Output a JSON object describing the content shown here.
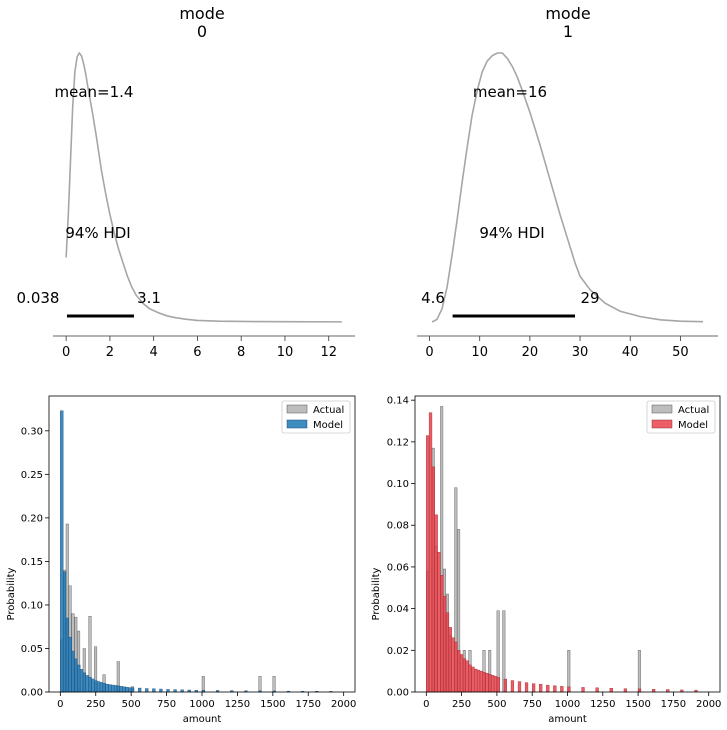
{
  "chart_data": [
    {
      "type": "area",
      "title": "mode\n0",
      "title_lines": [
        "mode",
        "0"
      ],
      "xlim": [
        -0.6,
        13.2
      ],
      "xticks": [
        0,
        2,
        4,
        6,
        8,
        10,
        12
      ],
      "xticklabels": [
        "0",
        "2",
        "4",
        "6",
        "8",
        "10",
        "12"
      ],
      "density": {
        "x": [
          0.0,
          0.1,
          0.2,
          0.3,
          0.4,
          0.5,
          0.6,
          0.7,
          0.8,
          0.9,
          1.0,
          1.2,
          1.4,
          1.6,
          1.8,
          2.0,
          2.2,
          2.4,
          2.6,
          2.8,
          3.0,
          3.2,
          3.5,
          3.8,
          4.2,
          4.6,
          5.0,
          5.5,
          6.0,
          7.0,
          8.0,
          10.0,
          12.6
        ],
        "y": [
          0.24,
          0.4,
          0.6,
          0.8,
          0.93,
          0.985,
          1.0,
          0.99,
          0.96,
          0.92,
          0.87,
          0.78,
          0.68,
          0.57,
          0.48,
          0.4,
          0.33,
          0.27,
          0.22,
          0.17,
          0.13,
          0.1,
          0.07,
          0.05,
          0.035,
          0.023,
          0.016,
          0.01,
          0.006,
          0.003,
          0.002,
          0.001,
          0.0005
        ]
      },
      "mean_label": "mean=1.4",
      "hdi_label": "94% HDI",
      "hdi": [
        0.038,
        3.1
      ],
      "hdi_low_label": "0.038",
      "hdi_high_label": "3.1",
      "line_color": "#a6a6a6"
    },
    {
      "type": "area",
      "title": "mode\n1",
      "title_lines": [
        "mode",
        "1"
      ],
      "xlim": [
        -2.5,
        57.5
      ],
      "xticks": [
        0,
        10,
        20,
        30,
        40,
        50
      ],
      "xticklabels": [
        "0",
        "10",
        "20",
        "30",
        "40",
        "50"
      ],
      "density": {
        "x": [
          0.5,
          1.5,
          2.5,
          3.5,
          4.5,
          5.5,
          6.5,
          7.5,
          8.5,
          9.5,
          10.5,
          11.5,
          12.5,
          13.5,
          14.5,
          15.5,
          16.5,
          17.5,
          18.5,
          20,
          22,
          24,
          26,
          28,
          29,
          30,
          32,
          35,
          38,
          42,
          46,
          50,
          54.5
        ],
        "y": [
          0.0,
          0.01,
          0.05,
          0.13,
          0.25,
          0.38,
          0.52,
          0.65,
          0.77,
          0.86,
          0.93,
          0.97,
          0.99,
          1.0,
          1.0,
          0.98,
          0.95,
          0.91,
          0.86,
          0.78,
          0.66,
          0.53,
          0.4,
          0.28,
          0.22,
          0.17,
          0.12,
          0.07,
          0.04,
          0.02,
          0.008,
          0.003,
          0.001
        ]
      },
      "mean_label": "mean=16",
      "hdi_label": "94% HDI",
      "hdi": [
        4.6,
        29
      ],
      "hdi_low_label": "4.6",
      "hdi_high_label": "29",
      "line_color": "#a6a6a6"
    },
    {
      "type": "bar",
      "xlabel": "amount",
      "ylabel": "Probability",
      "xlim": [
        -80,
        2080
      ],
      "ylim": [
        0,
        0.34
      ],
      "xticks": [
        0,
        250,
        500,
        750,
        1000,
        1250,
        1500,
        1750,
        2000
      ],
      "xticklabels": [
        "0",
        "250",
        "500",
        "750",
        "1000",
        "1250",
        "1500",
        "1750",
        "2000"
      ],
      "yticks": [
        0.0,
        0.05,
        0.1,
        0.15,
        0.2,
        0.25,
        0.3
      ],
      "yticklabels": [
        "0.00",
        "0.05",
        "0.10",
        "0.15",
        "0.20",
        "0.25",
        "0.30"
      ],
      "legend": [
        "Actual",
        "Model"
      ],
      "legend_position": "top-right",
      "series": [
        {
          "name": "Actual",
          "color": "#999999",
          "bin_width": 18,
          "x": [
            0,
            20,
            40,
            60,
            80,
            100,
            120,
            160,
            200,
            240,
            300,
            400,
            500,
            1000,
            1400,
            1500
          ],
          "values": [
            0.06,
            0.14,
            0.193,
            0.122,
            0.09,
            0.086,
            0.07,
            0.05,
            0.087,
            0.052,
            0.02,
            0.035,
            0.006,
            0.018,
            0.018,
            0.018
          ]
        },
        {
          "name": "Model",
          "color": "#1f77b4",
          "bin_width": 20,
          "x": [
            0,
            20,
            40,
            60,
            80,
            100,
            120,
            140,
            160,
            180,
            200,
            220,
            240,
            260,
            280,
            300,
            320,
            340,
            360,
            380,
            400,
            420,
            440,
            460,
            480,
            500,
            550,
            600,
            650,
            700,
            750,
            800,
            850,
            900,
            950,
            1000,
            1100,
            1200,
            1300,
            1400,
            1500,
            1600,
            1700,
            1800,
            1900
          ],
          "values": [
            0.323,
            0.138,
            0.085,
            0.063,
            0.047,
            0.038,
            0.031,
            0.026,
            0.022,
            0.019,
            0.017,
            0.015,
            0.013,
            0.012,
            0.011,
            0.01,
            0.009,
            0.0085,
            0.008,
            0.0075,
            0.007,
            0.0065,
            0.006,
            0.0055,
            0.005,
            0.005,
            0.0045,
            0.004,
            0.0037,
            0.0034,
            0.003,
            0.0028,
            0.0025,
            0.0023,
            0.002,
            0.002,
            0.0018,
            0.0016,
            0.0014,
            0.0013,
            0.0012,
            0.001,
            0.0009,
            0.0008,
            0.0007
          ]
        }
      ]
    },
    {
      "type": "bar",
      "xlabel": "amount",
      "ylabel": "Probability",
      "xlim": [
        -80,
        2080
      ],
      "ylim": [
        0,
        0.142
      ],
      "xticks": [
        0,
        250,
        500,
        750,
        1000,
        1250,
        1500,
        1750,
        2000
      ],
      "xticklabels": [
        "0",
        "250",
        "500",
        "750",
        "1000",
        "1250",
        "1500",
        "1750",
        "2000"
      ],
      "yticks": [
        0.0,
        0.02,
        0.04,
        0.06,
        0.08,
        0.1,
        0.12,
        0.14
      ],
      "yticklabels": [
        "0.00",
        "0.02",
        "0.04",
        "0.06",
        "0.08",
        "0.10",
        "0.12",
        "0.14"
      ],
      "legend": [
        "Actual",
        "Model"
      ],
      "legend_position": "top-right",
      "series": [
        {
          "name": "Actual",
          "color": "#999999",
          "bin_width": 18,
          "x": [
            0,
            40,
            60,
            100,
            120,
            140,
            160,
            200,
            220,
            260,
            300,
            400,
            440,
            500,
            540,
            1000,
            1500
          ],
          "values": [
            0.058,
            0.117,
            0.07,
            0.137,
            0.059,
            0.047,
            0.027,
            0.098,
            0.078,
            0.02,
            0.02,
            0.02,
            0.02,
            0.039,
            0.039,
            0.02,
            0.02
          ]
        },
        {
          "name": "Model",
          "color": "#e8424b",
          "bin_width": 20,
          "x": [
            0,
            20,
            40,
            60,
            80,
            100,
            120,
            140,
            160,
            180,
            200,
            220,
            240,
            260,
            280,
            300,
            320,
            340,
            360,
            380,
            400,
            420,
            440,
            460,
            480,
            500,
            550,
            600,
            650,
            700,
            750,
            800,
            850,
            900,
            950,
            1000,
            1100,
            1200,
            1300,
            1400,
            1500,
            1600,
            1700,
            1800,
            1900
          ],
          "values": [
            0.123,
            0.134,
            0.108,
            0.085,
            0.067,
            0.056,
            0.046,
            0.038,
            0.031,
            0.026,
            0.024,
            0.02,
            0.018,
            0.016,
            0.015,
            0.013,
            0.012,
            0.011,
            0.0105,
            0.01,
            0.0095,
            0.009,
            0.0085,
            0.008,
            0.0075,
            0.007,
            0.0062,
            0.0055,
            0.005,
            0.0045,
            0.004,
            0.0037,
            0.0033,
            0.003,
            0.0027,
            0.0025,
            0.0022,
            0.002,
            0.0018,
            0.0016,
            0.0015,
            0.0013,
            0.0012,
            0.001,
            0.0009
          ]
        }
      ]
    }
  ]
}
